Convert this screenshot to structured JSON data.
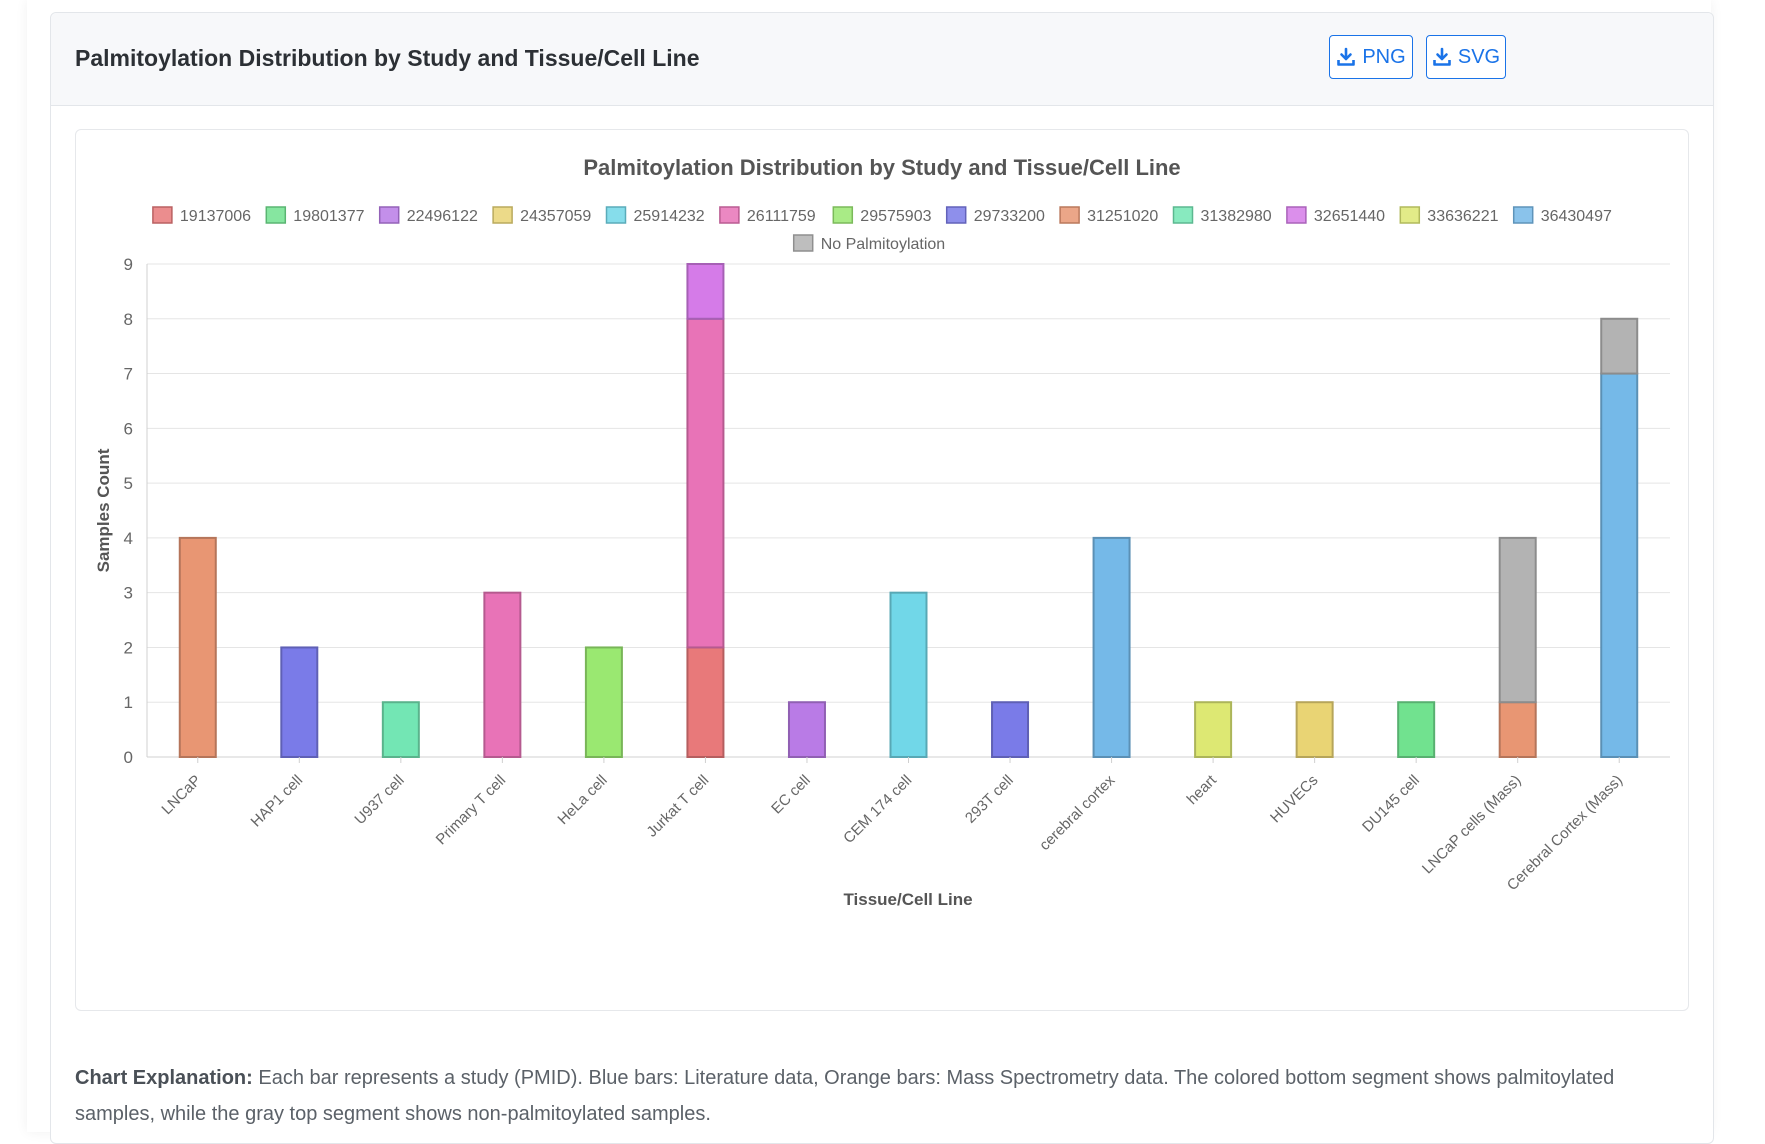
{
  "card": {
    "title": "Palmitoylation Distribution by Study and Tissue/Cell Line",
    "png_label": "PNG",
    "svg_label": "SVG"
  },
  "explanation": {
    "label": "Chart Explanation:",
    "text": "Each bar represents a study (PMID). Blue bars: Literature data, Orange bars: Mass Spectrometry data. The colored bottom segment shows palmitoylated samples, while the gray top segment shows non-palmitoylated samples."
  },
  "chart_data": {
    "type": "bar",
    "stacked": true,
    "title": "Palmitoylation Distribution by Study and Tissue/Cell Line",
    "xlabel": "Tissue/Cell Line",
    "ylabel": "Samples Count",
    "ylim": [
      0,
      9
    ],
    "yticks": [
      0,
      1,
      2,
      3,
      4,
      5,
      6,
      7,
      8,
      9
    ],
    "grid": true,
    "legend_position": "top",
    "categories": [
      "LNCaP",
      "HAP1 cell",
      "U937 cell",
      "Primary T cell",
      "HeLa cell",
      "Jurkat T cell",
      "EC cell",
      "CEM 174 cell",
      "293T cell",
      "cerebral cortex",
      "heart",
      "HUVECs",
      "DU145 cell",
      "LNCaP cells (Mass)",
      "Cerebral Cortex (Mass)"
    ],
    "series": [
      {
        "name": "19137006",
        "color": "#e8797a",
        "values": [
          0,
          0,
          0,
          0,
          0,
          2,
          0,
          0,
          0,
          0,
          0,
          0,
          0,
          0,
          0
        ]
      },
      {
        "name": "19801377",
        "color": "#71e28f",
        "values": [
          0,
          0,
          0,
          0,
          0,
          0,
          0,
          0,
          0,
          0,
          0,
          0,
          1,
          0,
          0
        ]
      },
      {
        "name": "22496122",
        "color": "#b97be6",
        "values": [
          0,
          0,
          0,
          0,
          0,
          0,
          1,
          0,
          0,
          0,
          0,
          0,
          0,
          0,
          0
        ]
      },
      {
        "name": "24357059",
        "color": "#e9d474",
        "values": [
          0,
          0,
          0,
          0,
          0,
          0,
          0,
          0,
          0,
          0,
          0,
          1,
          0,
          0,
          0
        ]
      },
      {
        "name": "25914232",
        "color": "#71d7e8",
        "values": [
          0,
          0,
          0,
          0,
          0,
          0,
          0,
          3,
          0,
          0,
          0,
          0,
          0,
          0,
          0
        ]
      },
      {
        "name": "26111759",
        "color": "#e873b7",
        "values": [
          0,
          0,
          0,
          3,
          0,
          6,
          0,
          0,
          0,
          0,
          0,
          0,
          0,
          0,
          0
        ]
      },
      {
        "name": "29575903",
        "color": "#9ae871",
        "values": [
          0,
          0,
          0,
          0,
          2,
          0,
          0,
          0,
          0,
          0,
          0,
          0,
          0,
          0,
          0
        ]
      },
      {
        "name": "29733200",
        "color": "#7a7be8",
        "values": [
          0,
          2,
          0,
          0,
          0,
          0,
          0,
          0,
          1,
          0,
          0,
          0,
          0,
          0,
          0
        ]
      },
      {
        "name": "31251020",
        "color": "#e89673",
        "values": [
          4,
          0,
          0,
          0,
          0,
          0,
          0,
          0,
          0,
          0,
          0,
          0,
          0,
          1,
          0
        ]
      },
      {
        "name": "31382980",
        "color": "#73e6b4",
        "values": [
          0,
          0,
          1,
          0,
          0,
          0,
          0,
          0,
          0,
          0,
          0,
          0,
          0,
          0,
          0
        ]
      },
      {
        "name": "32651440",
        "color": "#d57be8",
        "values": [
          0,
          0,
          0,
          0,
          0,
          1,
          0,
          0,
          0,
          0,
          0,
          0,
          0,
          0,
          0
        ]
      },
      {
        "name": "33636221",
        "color": "#dde873",
        "values": [
          0,
          0,
          0,
          0,
          0,
          0,
          0,
          0,
          0,
          0,
          1,
          0,
          0,
          0,
          0
        ]
      },
      {
        "name": "36430497",
        "color": "#75b9e8",
        "values": [
          0,
          0,
          0,
          0,
          0,
          0,
          0,
          0,
          0,
          4,
          0,
          0,
          0,
          0,
          7
        ]
      },
      {
        "name": "No Palmitoylation",
        "color": "#b3b3b3",
        "values": [
          0,
          0,
          0,
          0,
          0,
          0,
          0,
          0,
          0,
          0,
          0,
          0,
          0,
          3,
          1
        ]
      }
    ]
  },
  "colors": {
    "accent": "#1a73e8",
    "header_bg": "#f7f8fa"
  }
}
